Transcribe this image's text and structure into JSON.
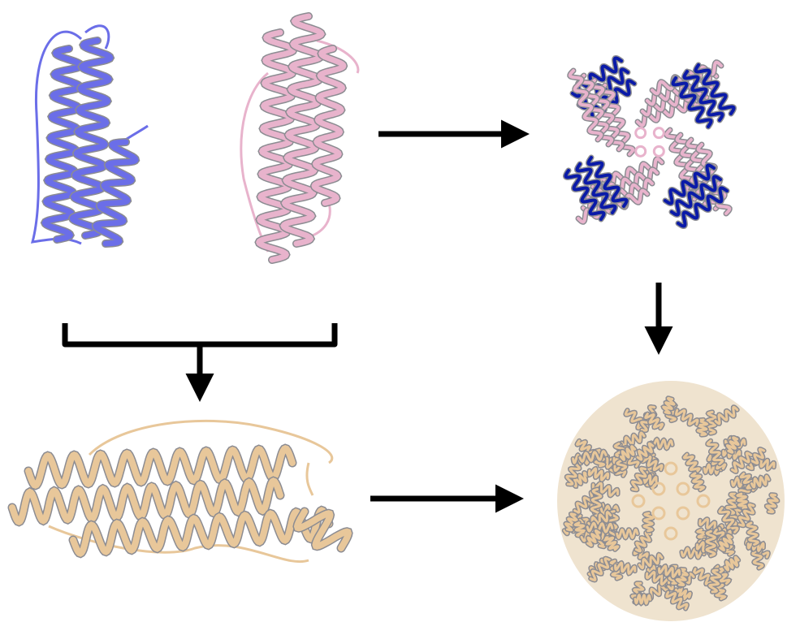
{
  "colors": {
    "blue_monomer": "#6b6ee8",
    "blue_dark": "#0a1aa8",
    "pink_monomer": "#e8b3cc",
    "tan_monomer": "#e8c79a",
    "helix_shadow": "#8c8c92",
    "arrow": "#000000"
  },
  "panels": [
    {
      "id": "blue-monomer",
      "icon": "helix-bundle-icon"
    },
    {
      "id": "pink-monomer",
      "icon": "helix-bundle-icon"
    },
    {
      "id": "mixed-cage-top-view",
      "icon": "protein-cage-icon"
    },
    {
      "id": "fused-dimer",
      "icon": "helix-bundle-icon"
    },
    {
      "id": "assembled-cage",
      "icon": "protein-cage-icon"
    }
  ],
  "arrows": [
    {
      "from": "pink-monomer",
      "to": "mixed-cage-top-view",
      "icon": "arrow-right-icon"
    },
    {
      "from": "mixed-cage-top-view",
      "to": "assembled-cage",
      "icon": "arrow-down-icon"
    },
    {
      "from": "monomer-pair",
      "to": "fused-dimer",
      "icon": "bracket-arrow-down-icon"
    },
    {
      "from": "fused-dimer",
      "to": "assembled-cage",
      "icon": "arrow-right-icon"
    }
  ]
}
